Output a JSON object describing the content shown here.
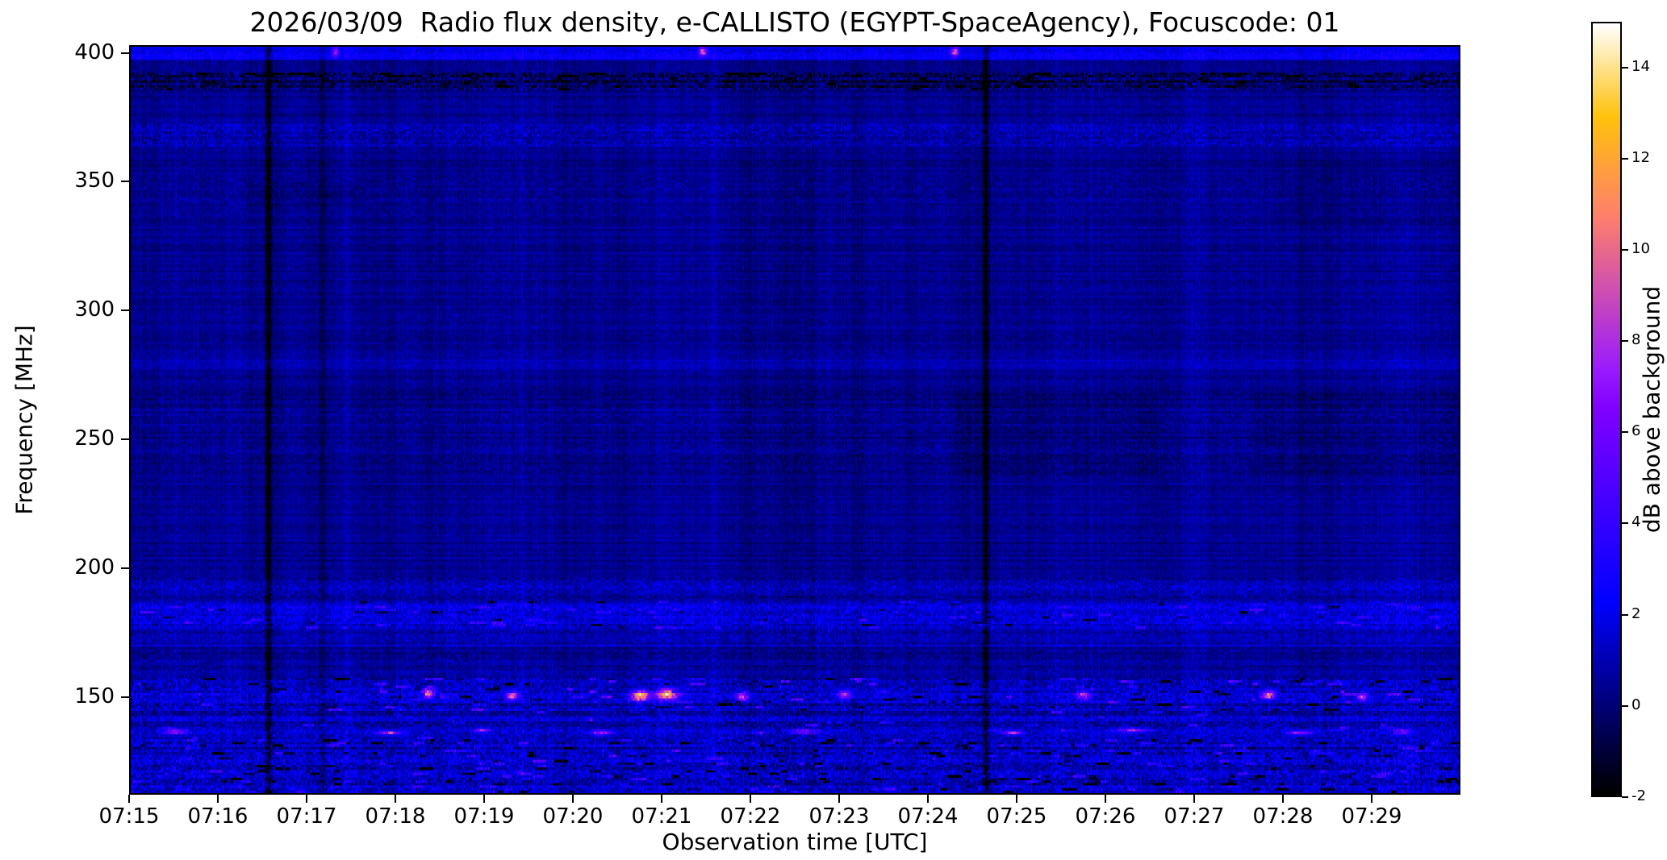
{
  "figure": {
    "background": "#ffffff"
  },
  "chart_data": {
    "type": "heatmap",
    "title": "2026/03/09  Radio flux density, e-CALLISTO (EGYPT-SpaceAgency), Focuscode: 01",
    "xlabel": "Observation time [UTC]",
    "ylabel": "Frequency [MHz]",
    "colorbar_label": "dB above background",
    "x_ticks": [
      "07:15",
      "07:16",
      "07:17",
      "07:18",
      "07:19",
      "07:20",
      "07:21",
      "07:22",
      "07:23",
      "07:24",
      "07:25",
      "07:26",
      "07:27",
      "07:28",
      "07:29"
    ],
    "duration_min": 15,
    "y_ticks": [
      400,
      350,
      300,
      250,
      200,
      150
    ],
    "y_range": [
      112,
      403
    ],
    "colorbar_ticks": [
      14,
      12,
      10,
      8,
      6,
      4,
      2,
      0,
      -2
    ],
    "value_range": [
      -2,
      15
    ],
    "colormap": "gnuplot2",
    "grid": false,
    "background": {
      "level": 0.35,
      "noise": 0.45
    },
    "bands": [
      {
        "f_lo": 398,
        "f_hi": 403.5,
        "level": 2.0,
        "noise": 0.9
      },
      {
        "f_lo": 386,
        "f_hi": 393,
        "level": -0.4,
        "noise": 2.4,
        "dark_dash_p": 0.02,
        "dark_dash_amp": 2.0
      },
      {
        "f_lo": 364,
        "f_hi": 373,
        "level": 0.9,
        "noise": 1.5
      },
      {
        "f_lo": 342,
        "f_hi": 352,
        "level": 0.45,
        "noise": 0.75
      },
      {
        "f_lo": 277,
        "f_hi": 281,
        "level": 0.95,
        "noise": 0.5
      },
      {
        "f_lo": 236,
        "f_hi": 268,
        "level": 0.35,
        "noise": 0.75
      },
      {
        "f_lo": 188,
        "f_hi": 196,
        "level": 0.9,
        "noise": 1.4
      },
      {
        "f_lo": 176,
        "f_hi": 187,
        "level": 1.6,
        "noise": 1.7,
        "dash_p": 0.01,
        "dash_amp": 2.2,
        "dark_dash_p": 0.004,
        "dark_dash_amp": 2.0
      },
      {
        "f_lo": 169,
        "f_hi": 176,
        "level": 1.0,
        "noise": 1.2
      },
      {
        "f_lo": 157,
        "f_hi": 169,
        "level": 0.5,
        "noise": 0.9
      },
      {
        "f_lo": 144,
        "f_hi": 157,
        "level": 1.2,
        "noise": 2.2,
        "dash_p": 0.013,
        "dash_amp": 3.2,
        "dark_dash_p": 0.008,
        "dark_dash_amp": 2.5,
        "t_windows": [
          [
            2.4,
            6.6
          ],
          [
            7.1,
            8.4
          ],
          [
            10.2,
            11.3
          ],
          [
            12.2,
            13.7
          ]
        ]
      },
      {
        "f_lo": 133,
        "f_hi": 144,
        "level": 1.1,
        "noise": 1.9,
        "dash_p": 0.005,
        "dash_amp": 2.6
      },
      {
        "f_lo": 112,
        "f_hi": 133,
        "level": 1.2,
        "noise": 2.3,
        "dash_p": 0.01,
        "dash_amp": 2.4,
        "dark_dash_p": 0.012,
        "dark_dash_amp": 2.8
      }
    ],
    "vertical_lines": [
      {
        "t_min": 1.55,
        "depth_db": 2.3,
        "width_s": 3
      },
      {
        "t_min": 2.15,
        "depth_db": 1.0,
        "width_s": 3
      },
      {
        "t_min": 9.65,
        "depth_db": 2.3,
        "width_s": 3
      }
    ],
    "hot_spots": [
      {
        "t_min": 2.3,
        "f_mhz": 401.5,
        "amp_db": 6,
        "sd_t_min": 0.025,
        "sd_f_mhz": 1.2
      },
      {
        "t_min": 6.45,
        "f_mhz": 401.5,
        "amp_db": 8,
        "sd_t_min": 0.03,
        "sd_f_mhz": 1.2
      },
      {
        "t_min": 9.3,
        "f_mhz": 401.5,
        "amp_db": 8,
        "sd_t_min": 0.03,
        "sd_f_mhz": 1.2
      },
      {
        "t_min": 3.35,
        "f_mhz": 151.5,
        "amp_db": 9,
        "sd_t_min": 0.05,
        "sd_f_mhz": 1.3
      },
      {
        "t_min": 4.3,
        "f_mhz": 150.5,
        "amp_db": 8,
        "sd_t_min": 0.05,
        "sd_f_mhz": 1.1
      },
      {
        "t_min": 5.75,
        "f_mhz": 150.5,
        "amp_db": 12,
        "sd_t_min": 0.07,
        "sd_f_mhz": 1.3
      },
      {
        "t_min": 6.05,
        "f_mhz": 151.0,
        "amp_db": 11,
        "sd_t_min": 0.09,
        "sd_f_mhz": 1.5
      },
      {
        "t_min": 6.9,
        "f_mhz": 150.0,
        "amp_db": 8,
        "sd_t_min": 0.05,
        "sd_f_mhz": 1.1
      },
      {
        "t_min": 8.05,
        "f_mhz": 151.0,
        "amp_db": 7.5,
        "sd_t_min": 0.05,
        "sd_f_mhz": 1.1
      },
      {
        "t_min": 10.75,
        "f_mhz": 150.5,
        "amp_db": 8,
        "sd_t_min": 0.05,
        "sd_f_mhz": 1.1
      },
      {
        "t_min": 12.85,
        "f_mhz": 151.0,
        "amp_db": 8.5,
        "sd_t_min": 0.05,
        "sd_f_mhz": 1.1
      },
      {
        "t_min": 13.9,
        "f_mhz": 150.0,
        "amp_db": 7,
        "sd_t_min": 0.04,
        "sd_f_mhz": 1.0
      },
      {
        "t_min": 0.5,
        "f_mhz": 136.5,
        "amp_db": 6,
        "sd_t_min": 0.09,
        "sd_f_mhz": 0.6
      },
      {
        "t_min": 2.9,
        "f_mhz": 136.0,
        "amp_db": 6,
        "sd_t_min": 0.1,
        "sd_f_mhz": 0.6
      },
      {
        "t_min": 3.95,
        "f_mhz": 137.0,
        "amp_db": 5.5,
        "sd_t_min": 0.06,
        "sd_f_mhz": 0.6
      },
      {
        "t_min": 5.3,
        "f_mhz": 136.0,
        "amp_db": 6,
        "sd_t_min": 0.08,
        "sd_f_mhz": 0.6
      },
      {
        "t_min": 7.6,
        "f_mhz": 136.5,
        "amp_db": 6,
        "sd_t_min": 0.11,
        "sd_f_mhz": 0.6
      },
      {
        "t_min": 9.95,
        "f_mhz": 136.0,
        "amp_db": 6,
        "sd_t_min": 0.08,
        "sd_f_mhz": 0.6
      },
      {
        "t_min": 11.3,
        "f_mhz": 137.0,
        "amp_db": 6,
        "sd_t_min": 0.12,
        "sd_f_mhz": 0.6
      },
      {
        "t_min": 13.2,
        "f_mhz": 136.0,
        "amp_db": 6,
        "sd_t_min": 0.09,
        "sd_f_mhz": 0.6
      },
      {
        "t_min": 14.35,
        "f_mhz": 136.5,
        "amp_db": 5.5,
        "sd_t_min": 0.06,
        "sd_f_mhz": 0.6
      }
    ],
    "dark_patches": [
      {
        "t0": 9.3,
        "t1": 11.6,
        "f0": 235,
        "f1": 268,
        "dv": -0.3
      },
      {
        "t0": 12.7,
        "t1": 15.0,
        "f0": 235,
        "f1": 268,
        "dv": -0.3
      },
      {
        "t0": 12.9,
        "t1": 15.0,
        "f0": 332,
        "f1": 362,
        "dv": -0.22
      },
      {
        "t0": 1.3,
        "t1": 2.6,
        "f0": 340,
        "f1": 350,
        "dv": -0.25
      }
    ]
  }
}
